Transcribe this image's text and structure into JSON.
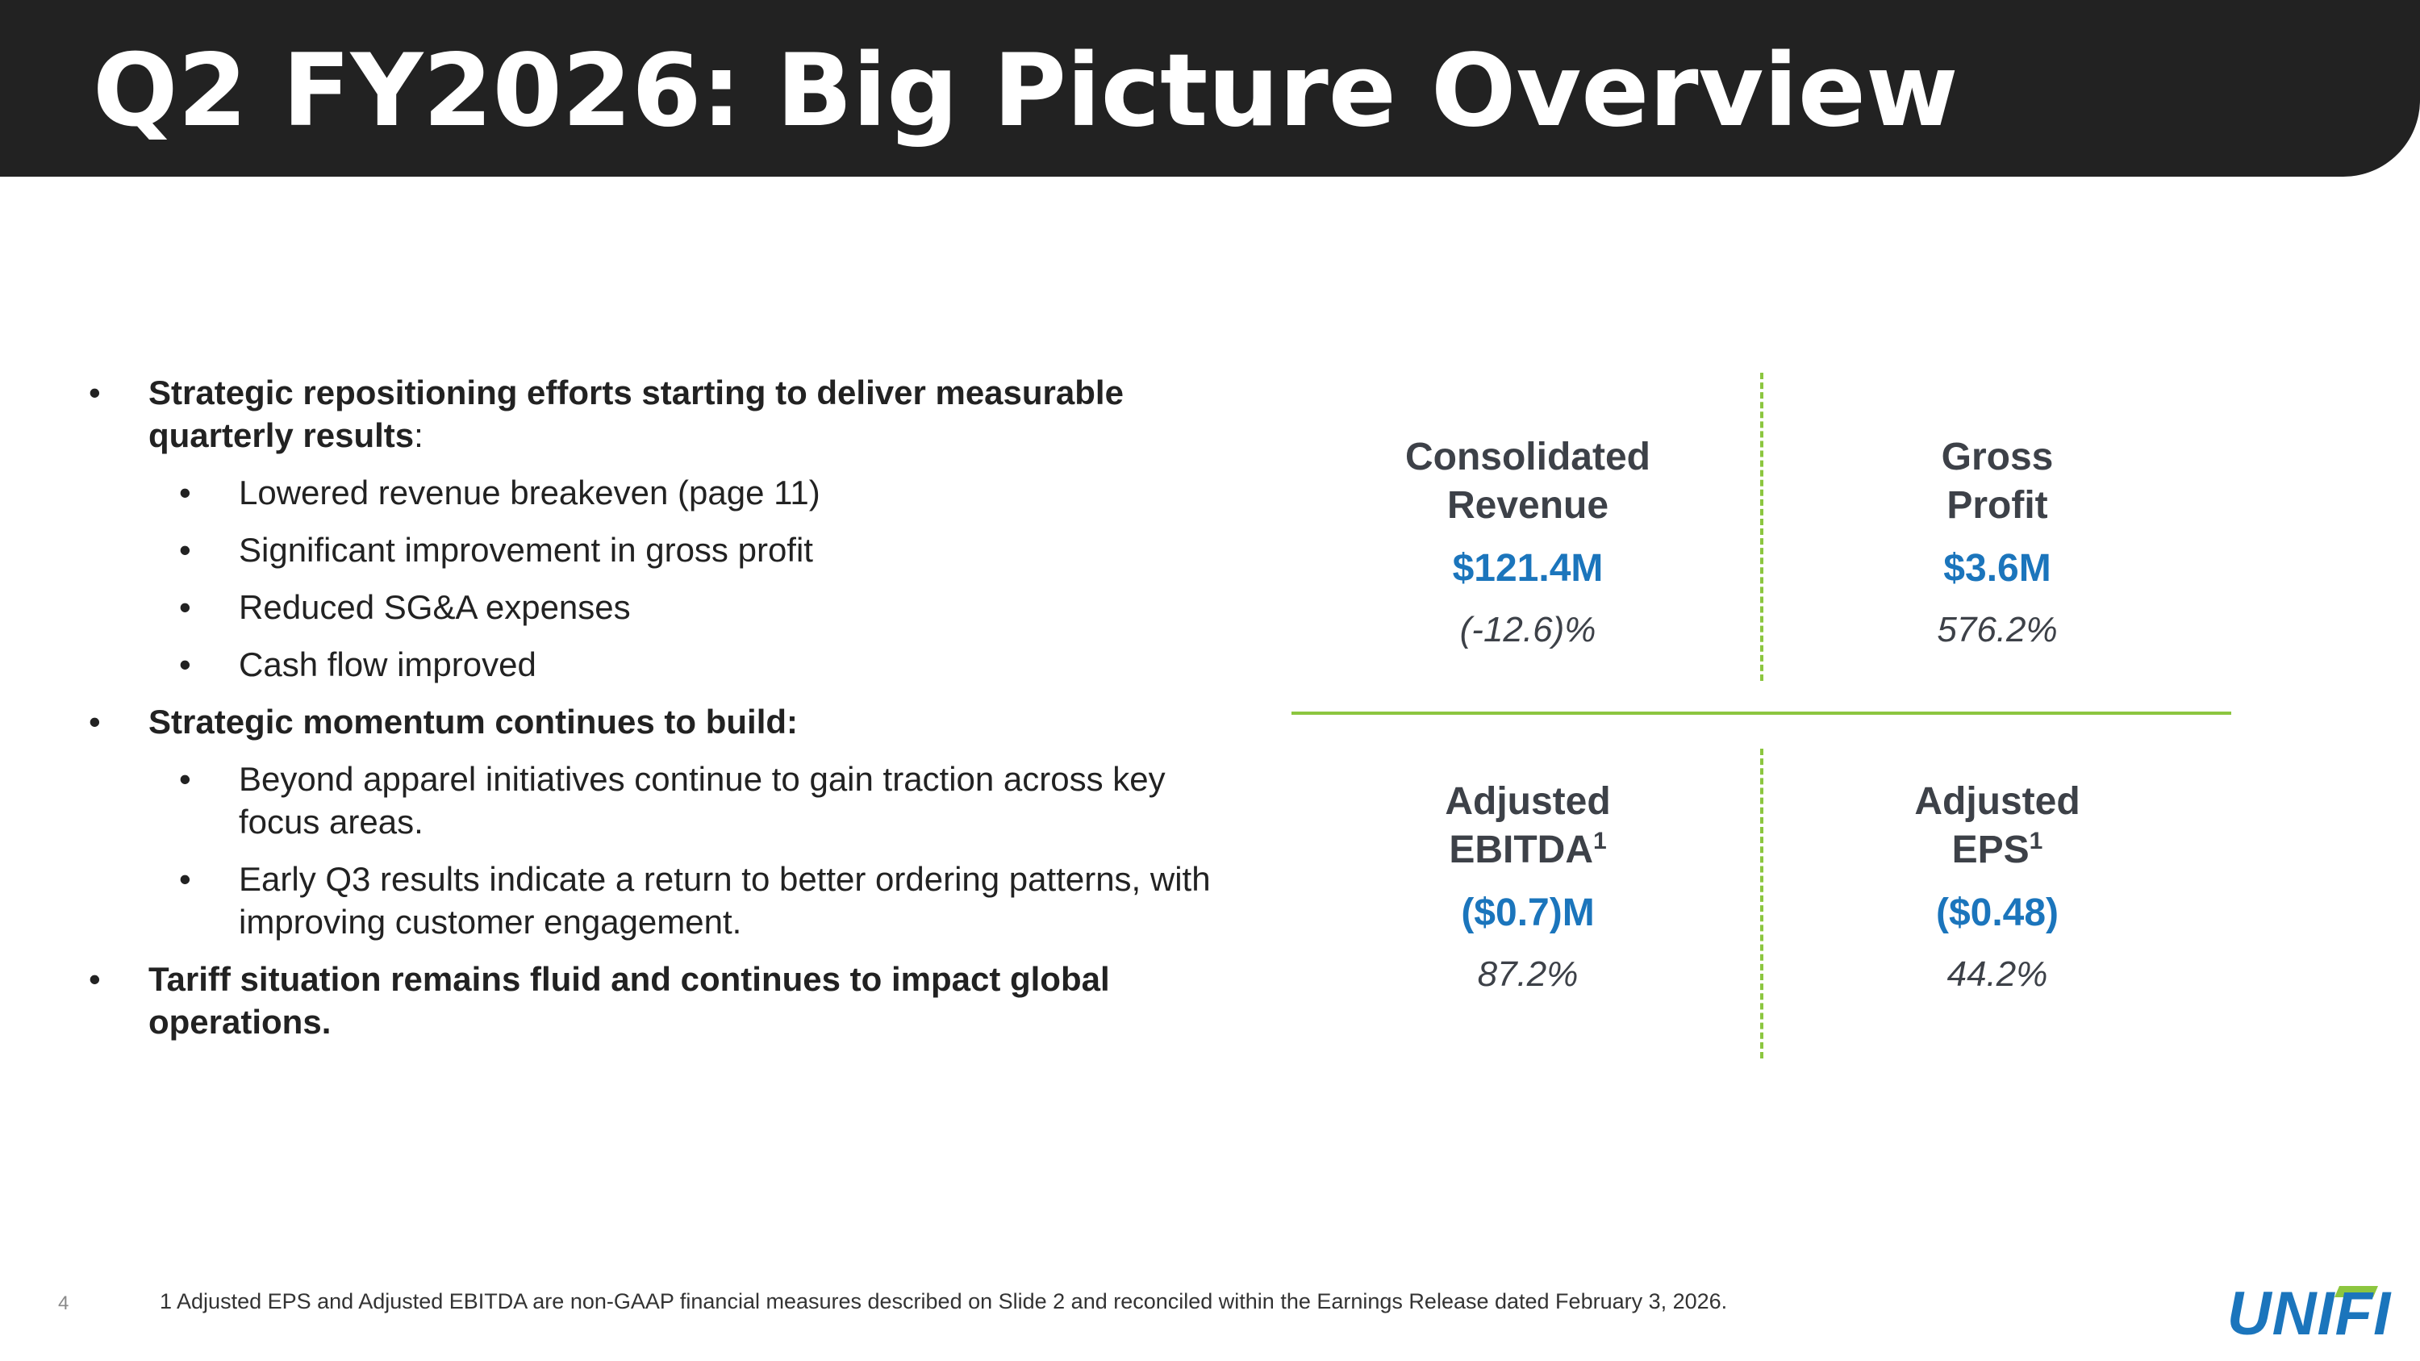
{
  "slide": {
    "title": "Q2 FY2026: Big Picture Overview",
    "page_number": "4",
    "footnote": "1 Adjusted EPS and Adjusted EBITDA are non-GAAP financial measures described on Slide 2 and reconciled within the Earnings Release dated February 3, 2026."
  },
  "bullet_glyph": "•",
  "bullets": {
    "b1": {
      "text": "Strategic repositioning efforts starting to deliver measurable quarterly results",
      "suffix": ":"
    },
    "b1_subs": [
      "Lowered revenue breakeven (page 11)",
      "Significant improvement in gross profit",
      "Reduced SG&A expenses",
      "Cash flow improved"
    ],
    "b2": {
      "text": "Strategic momentum continues to build:"
    },
    "b2_subs": [
      "Beyond apparel initiatives continue to gain traction across key focus areas.",
      "Early Q3 results indicate a return to better ordering patterns, with improving customer engagement."
    ],
    "b3": {
      "text": "Tariff situation remains fluid and continues to impact global operations."
    }
  },
  "metrics": {
    "revenue": {
      "label_line1": "Consolidated",
      "label_line2": "Revenue",
      "value": "$121.4M",
      "change": "(-12.6)%"
    },
    "gross_profit": {
      "label_line1": "Gross",
      "label_line2": "Profit",
      "value": "$3.6M",
      "change": "576.2%"
    },
    "ebitda": {
      "label_line1": "Adjusted",
      "label_line2": "EBITDA",
      "footnote_ref": "1",
      "value": "($0.7)M",
      "change": "87.2%"
    },
    "eps": {
      "label_line1": "Adjusted",
      "label_line2": "EPS",
      "footnote_ref": "1",
      "value": "($0.48)",
      "change": "44.2%"
    }
  },
  "logo": {
    "text": "UNIFI",
    "color": "#1b75bc",
    "accent_color": "#8cc63f"
  },
  "colors": {
    "header_bg": "#222222",
    "value_blue": "#1b75bc",
    "divider_green": "#8cc63f",
    "label_gray": "#3d4148"
  }
}
